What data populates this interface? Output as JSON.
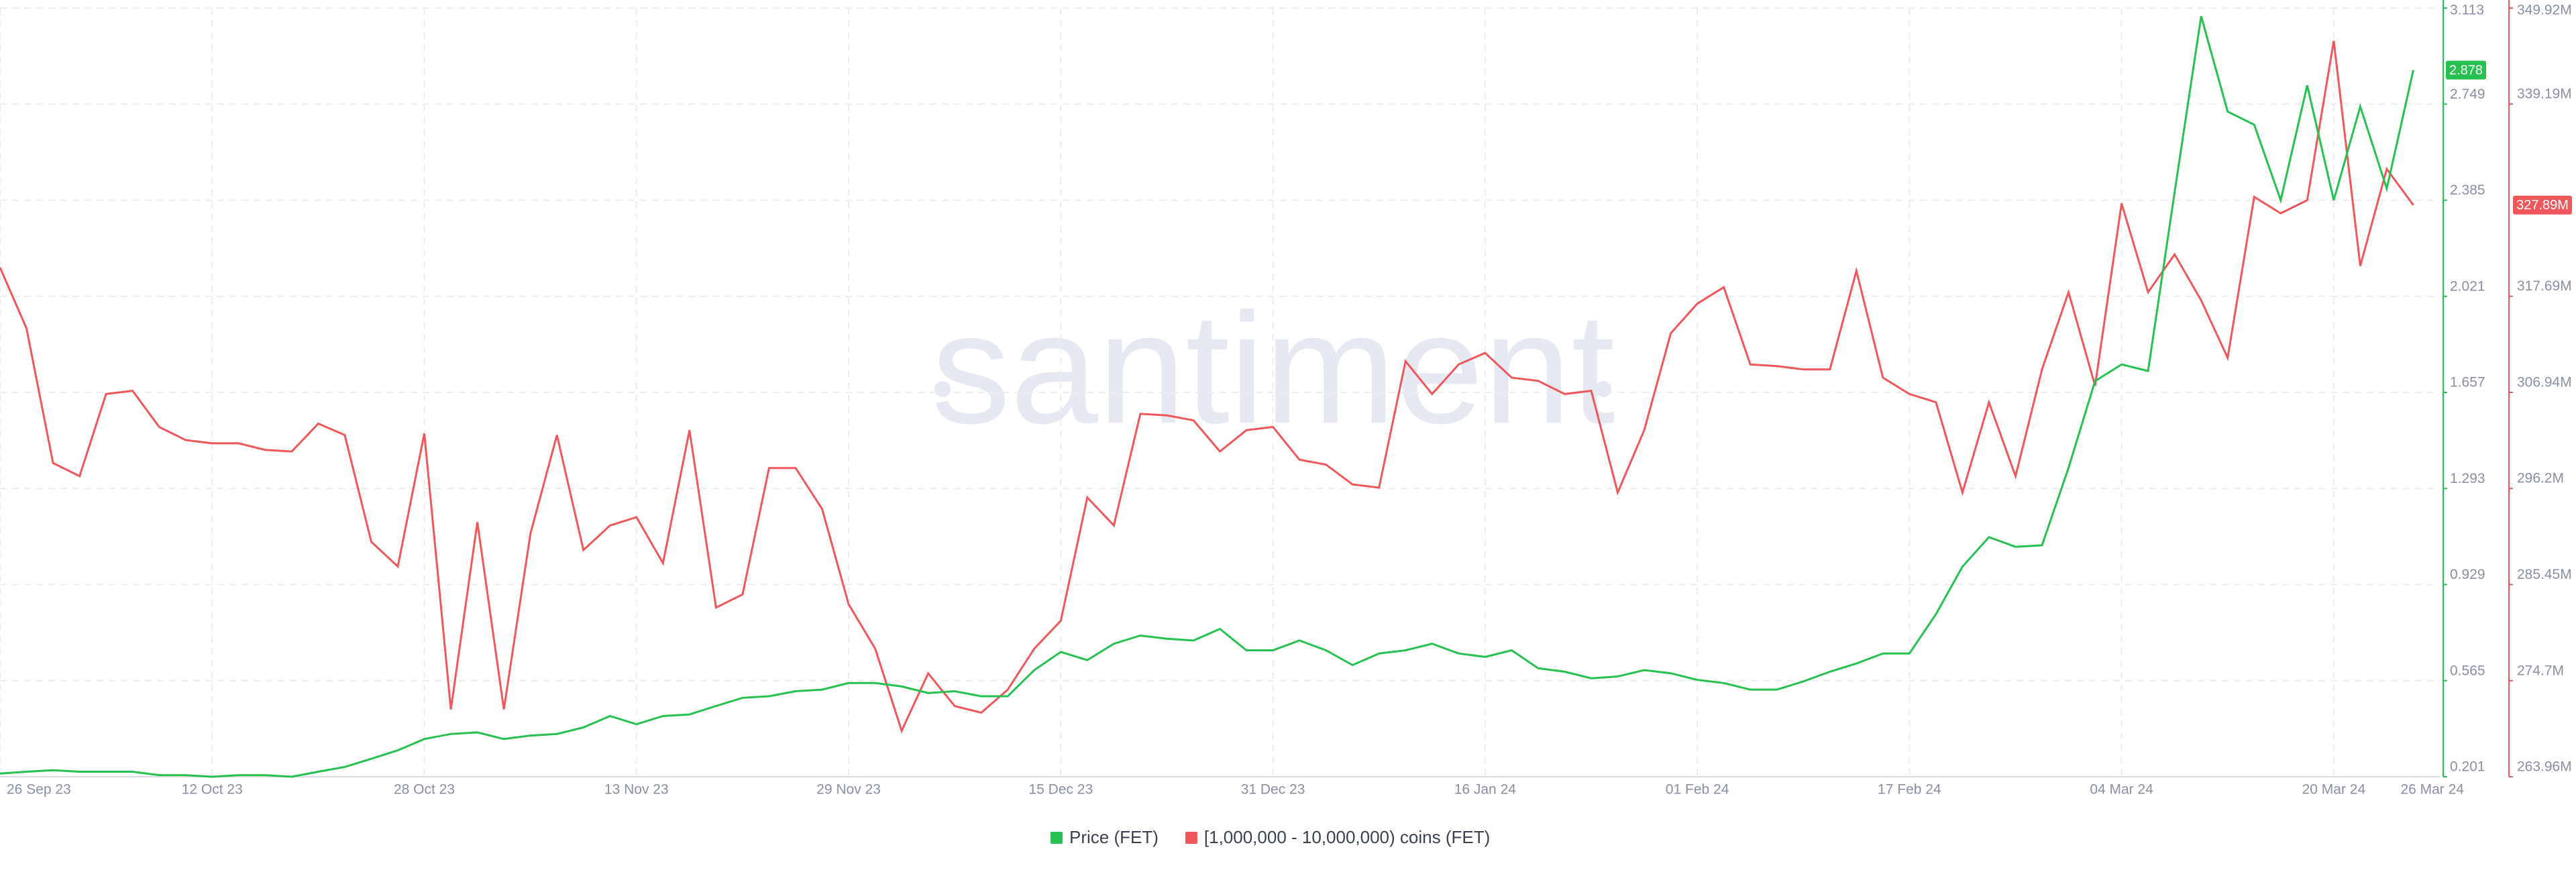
{
  "chart_data": {
    "type": "line",
    "watermark": "santiment",
    "x": [
      0,
      2,
      4,
      6,
      8,
      10,
      12,
      14,
      16,
      18,
      20,
      22,
      24,
      26,
      28,
      30,
      32,
      34,
      36,
      38,
      40,
      42,
      44,
      46,
      48,
      50,
      52,
      54,
      56,
      58,
      60,
      62,
      64,
      66,
      68,
      70,
      72,
      74,
      76,
      78,
      80,
      82,
      84,
      86,
      88,
      90,
      92,
      94,
      96,
      98,
      100,
      102,
      104,
      106,
      108,
      110,
      112,
      114,
      116,
      118,
      120,
      122,
      124,
      126,
      128,
      130,
      132,
      134,
      136,
      138,
      140,
      142,
      144,
      146,
      148,
      150,
      152,
      154,
      156,
      158,
      160,
      162,
      164,
      166,
      168,
      170,
      172,
      174,
      176,
      178,
      180,
      182
    ],
    "xlim": [
      0,
      184
    ],
    "xticks": [
      {
        "value": 0,
        "label": "26 Sep 23"
      },
      {
        "value": 16,
        "label": "12 Oct 23"
      },
      {
        "value": 32,
        "label": "28 Oct 23"
      },
      {
        "value": 48,
        "label": "13 Nov 23"
      },
      {
        "value": 64,
        "label": "29 Nov 23"
      },
      {
        "value": 80,
        "label": "15 Dec 23"
      },
      {
        "value": 96,
        "label": "31 Dec 23"
      },
      {
        "value": 112,
        "label": "16 Jan 24"
      },
      {
        "value": 128,
        "label": "01 Feb 24"
      },
      {
        "value": 144,
        "label": "17 Feb 24"
      },
      {
        "value": 160,
        "label": "04 Mar 24"
      },
      {
        "value": 176,
        "label": "20 Mar 24"
      },
      {
        "value": 182,
        "label": "26 Mar 24"
      }
    ],
    "ylim": [
      0.201,
      3.113
    ],
    "yticks": [
      0.201,
      0.565,
      0.929,
      1.293,
      1.657,
      2.021,
      2.385,
      2.749,
      3.113
    ],
    "y2lim": [
      263960000,
      349920000
    ],
    "y2ticks": [
      {
        "value": 263960000,
        "label": "263.96M"
      },
      {
        "value": 274700000,
        "label": "274.7M"
      },
      {
        "value": 285450000,
        "label": "285.45M"
      },
      {
        "value": 296200000,
        "label": "296.2M"
      },
      {
        "value": 306940000,
        "label": "306.94M"
      },
      {
        "value": 317690000,
        "label": "317.69M"
      },
      {
        "value": 339190000,
        "label": "339.19M"
      },
      {
        "value": 349920000,
        "label": "349.92M"
      }
    ],
    "grid": true,
    "series": [
      {
        "name": "Price (FET)",
        "color": "#26c150",
        "current_label": "2.878",
        "values": [
          0.213,
          0.22,
          0.226,
          0.22,
          0.22,
          0.22,
          0.207,
          0.207,
          0.201,
          0.207,
          0.207,
          0.201,
          0.22,
          0.238,
          0.269,
          0.301,
          0.344,
          0.363,
          0.369,
          0.344,
          0.357,
          0.363,
          0.388,
          0.431,
          0.4,
          0.431,
          0.437,
          0.469,
          0.5,
          0.506,
          0.525,
          0.531,
          0.556,
          0.556,
          0.543,
          0.518,
          0.525,
          0.506,
          0.506,
          0.605,
          0.674,
          0.643,
          0.705,
          0.736,
          0.724,
          0.717,
          0.761,
          0.68,
          0.68,
          0.717,
          0.68,
          0.624,
          0.668,
          0.68,
          0.705,
          0.668,
          0.655,
          0.68,
          0.612,
          0.599,
          0.574,
          0.581,
          0.605,
          0.593,
          0.568,
          0.556,
          0.531,
          0.531,
          0.562,
          0.599,
          0.63,
          0.668,
          0.668,
          0.817,
          0.997,
          1.109,
          1.072,
          1.078,
          1.371,
          1.7,
          1.763,
          1.738,
          2.416,
          3.082,
          2.721,
          2.671,
          2.385,
          2.82,
          2.385,
          2.74,
          2.429,
          2.878
        ]
      },
      {
        "name": "[1,000,000 - 10,000,000) coins (FET)",
        "color": "#f0575a",
        "axis": "y2",
        "current_label": "327.89M",
        "values": [
          320900000,
          314100000,
          299040000,
          297570000,
          306760000,
          307120000,
          303080000,
          301610000,
          301250000,
          301250000,
          300510000,
          300330000,
          303450000,
          302170000,
          290230000,
          287470000,
          302350000,
          271490000,
          292430000,
          271490000,
          291140000,
          302170000,
          289310000,
          292060000,
          292980000,
          287840000,
          302720000,
          282880000,
          284350000,
          298490000,
          298490000,
          293900000,
          283250000,
          278290000,
          269100000,
          275530000,
          271860000,
          271120000,
          273700000,
          278290000,
          281410000,
          295190000,
          292060000,
          304550000,
          304370000,
          303820000,
          300330000,
          302720000,
          303080000,
          299410000,
          298860000,
          296650000,
          296290000,
          310430000,
          306760000,
          310060000,
          311350000,
          308590000,
          308230000,
          306760000,
          307120000,
          295740000,
          302720000,
          313550000,
          316860000,
          318700000,
          310060000,
          309880000,
          309510000,
          309510000,
          320530000,
          308590000,
          306760000,
          305840000,
          295740000,
          305840000,
          297570000,
          309510000,
          318150000,
          307680000,
          328060000,
          318150000,
          322370000,
          317230000,
          310800000,
          328800000,
          326970000,
          328430000,
          346250000,
          321080000,
          331920000,
          327890000
        ]
      }
    ]
  }
}
